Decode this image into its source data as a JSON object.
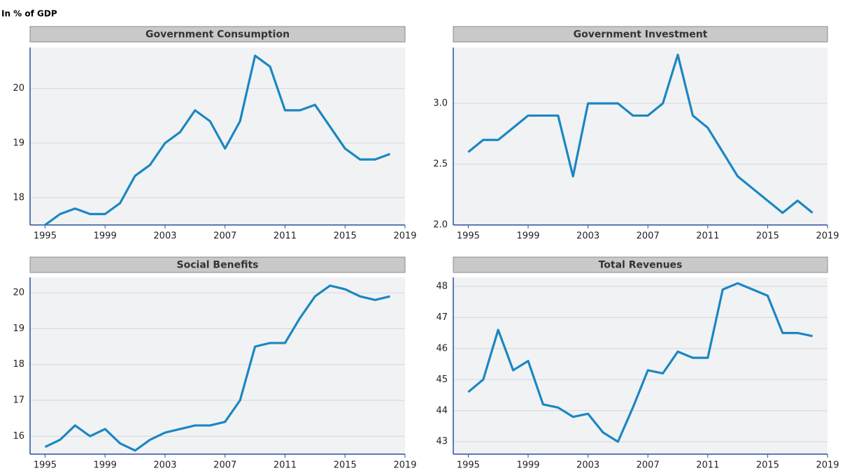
{
  "subtitle": "In % of GDP",
  "chart_data": [
    {
      "type": "line",
      "title": "Government Consumption",
      "x": [
        1995,
        1996,
        1997,
        1998,
        1999,
        2000,
        2001,
        2002,
        2003,
        2004,
        2005,
        2006,
        2007,
        2008,
        2009,
        2010,
        2011,
        2012,
        2013,
        2014,
        2015,
        2016,
        2017,
        2018
      ],
      "series": [
        {
          "color": "#1b87c2",
          "values": [
            17.5,
            17.7,
            17.8,
            17.7,
            17.7,
            17.9,
            18.4,
            18.6,
            19.0,
            19.2,
            19.6,
            19.4,
            18.9,
            19.4,
            20.6,
            20.4,
            19.6,
            19.6,
            19.7,
            19.3,
            18.9,
            18.7,
            18.7,
            18.8
          ]
        }
      ],
      "xlim": [
        1994,
        2019
      ],
      "xticks": [
        1995,
        1999,
        2003,
        2007,
        2011,
        2015,
        2019
      ],
      "ylim": [
        17.5,
        20.75
      ],
      "yticks": [
        18,
        19,
        20
      ],
      "grid": true
    },
    {
      "type": "line",
      "title": "Government Investment",
      "x": [
        1995,
        1996,
        1997,
        1998,
        1999,
        2000,
        2001,
        2002,
        2003,
        2004,
        2005,
        2006,
        2007,
        2008,
        2009,
        2010,
        2011,
        2012,
        2013,
        2014,
        2015,
        2016,
        2017,
        2018
      ],
      "series": [
        {
          "color": "#1b87c2",
          "values": [
            2.6,
            2.7,
            2.7,
            2.8,
            2.9,
            2.9,
            2.9,
            2.4,
            3.0,
            3.0,
            3.0,
            2.9,
            2.9,
            3.0,
            3.4,
            2.9,
            2.8,
            2.6,
            2.4,
            2.3,
            2.2,
            2.1,
            2.2,
            2.1
          ]
        }
      ],
      "xlim": [
        1994,
        2019
      ],
      "xticks": [
        1995,
        1999,
        2003,
        2007,
        2011,
        2015,
        2019
      ],
      "ylim": [
        2.0,
        3.46
      ],
      "yticks": [
        {
          "value": 2.0,
          "label": "2.0"
        },
        2.5,
        {
          "value": 3.0,
          "label": "3.0"
        }
      ],
      "grid": true
    },
    {
      "type": "line",
      "title": "Social Benefits",
      "x": [
        1995,
        1996,
        1997,
        1998,
        1999,
        2000,
        2001,
        2002,
        2003,
        2004,
        2005,
        2006,
        2007,
        2008,
        2009,
        2010,
        2011,
        2012,
        2013,
        2014,
        2015,
        2016,
        2017,
        2018
      ],
      "series": [
        {
          "color": "#1b87c2",
          "values": [
            15.7,
            15.9,
            16.3,
            16.0,
            16.2,
            15.8,
            15.6,
            15.9,
            16.1,
            16.2,
            16.3,
            16.3,
            16.4,
            17.0,
            18.5,
            18.6,
            18.6,
            19.3,
            19.9,
            20.2,
            20.1,
            19.9,
            19.8,
            19.9
          ]
        }
      ],
      "xlim": [
        1994,
        2019
      ],
      "xticks": [
        1995,
        1999,
        2003,
        2007,
        2011,
        2015,
        2019
      ],
      "ylim": [
        15.5,
        20.43
      ],
      "yticks": [
        16,
        17,
        18,
        19,
        20
      ],
      "grid": true
    },
    {
      "type": "line",
      "title": "Total Revenues",
      "x": [
        1995,
        1996,
        1997,
        1998,
        1999,
        2000,
        2001,
        2002,
        2003,
        2004,
        2005,
        2006,
        2007,
        2008,
        2009,
        2010,
        2011,
        2012,
        2013,
        2014,
        2015,
        2016,
        2017,
        2018
      ],
      "series": [
        {
          "color": "#1b87c2",
          "values": [
            44.6,
            45.0,
            46.6,
            45.3,
            45.6,
            44.2,
            44.1,
            43.8,
            43.9,
            43.3,
            43.0,
            44.1,
            45.3,
            45.2,
            45.9,
            45.7,
            45.7,
            47.9,
            48.1,
            47.9,
            47.7,
            46.5,
            46.5,
            46.4
          ]
        }
      ],
      "xlim": [
        1994,
        2019
      ],
      "xticks": [
        1995,
        1999,
        2003,
        2007,
        2011,
        2015,
        2019
      ],
      "ylim": [
        42.6,
        48.29
      ],
      "yticks": [
        43,
        44,
        45,
        46,
        47,
        48
      ],
      "grid": true
    }
  ]
}
